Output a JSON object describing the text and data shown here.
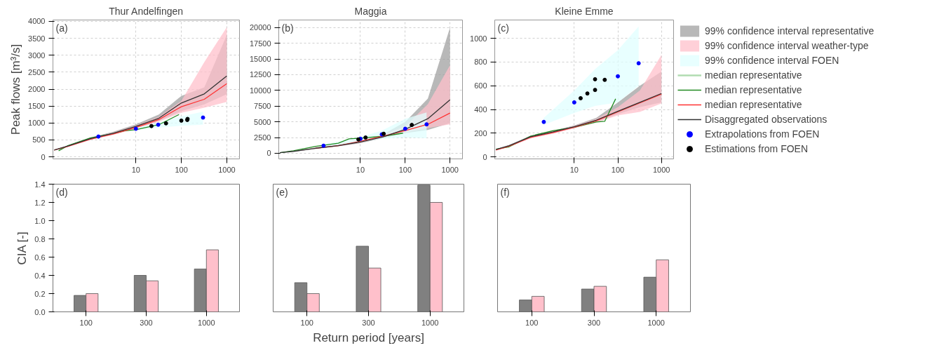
{
  "chart_data": [
    {
      "type": "line",
      "title": "Thur Andelfingen",
      "ylabel": "Peak flows [m³/s]",
      "annotations": [
        "(a)"
      ],
      "log": "x",
      "grid": true,
      "xlim": [
        0.15,
        1900
      ],
      "xticks": [
        10,
        100,
        1000
      ],
      "ylim": [
        -60,
        4040
      ],
      "yticks": [
        0,
        500,
        1000,
        1500,
        2000,
        2500,
        3000,
        3500,
        4000
      ],
      "series": [
        {
          "type": "area",
          "color": "#a0a0a0",
          "x": [
            0.16,
            0.32,
            1,
            3.2,
            10,
            32,
            100,
            320,
            1000
          ],
          "values": [
            null,
            null,
            null,
            null,
            null,
            null,
            null,
            null,
            null
          ],
          "lower": [
            190,
            300,
            510,
            660,
            840,
            1060,
            1350,
            1550,
            1850
          ],
          "upper": [
            210,
            340,
            570,
            740,
            960,
            1250,
            1800,
            2050,
            3600
          ]
        },
        {
          "type": "area",
          "color": "#ffc0cb",
          "x": [
            0.16,
            0.32,
            1,
            3.2,
            10,
            32,
            100,
            320,
            1000
          ],
          "values": [
            null,
            null,
            null,
            null,
            null,
            null,
            null,
            null,
            null
          ],
          "lower": [
            190,
            290,
            500,
            650,
            830,
            1040,
            1300,
            1450,
            1620
          ],
          "upper": [
            210,
            330,
            550,
            720,
            930,
            1180,
            1650,
            2800,
            3830
          ]
        },
        {
          "type": "area",
          "color": "#e0ffff",
          "x": [
            10,
            30,
            100,
            300
          ],
          "values": [
            null,
            null,
            null,
            null
          ],
          "lower": [
            800,
            860,
            920,
            950
          ],
          "upper": [
            850,
            1000,
            1200,
            1330
          ]
        },
        {
          "type": "line",
          "color": "#228b22",
          "x": [
            0.2,
            0.32,
            1,
            3.2,
            5.7,
            10,
            32,
            89
          ],
          "values": [
            180,
            330,
            560,
            690,
            770,
            800,
            950,
            1250
          ]
        },
        {
          "type": "line",
          "color": "#ff3333",
          "x": [
            0.16,
            0.32,
            1,
            3.2,
            10,
            32,
            100,
            320,
            1000
          ],
          "values": [
            200,
            310,
            520,
            680,
            870,
            1100,
            1480,
            1700,
            2160
          ]
        },
        {
          "type": "line",
          "color": "#333333",
          "x": [
            0.16,
            0.32,
            1,
            3.2,
            10,
            32,
            100,
            320,
            1000
          ],
          "values": [
            200,
            320,
            540,
            700,
            900,
            1140,
            1590,
            1860,
            2390
          ]
        },
        {
          "type": "scatter",
          "color": "#0000ff",
          "x": [
            1.5,
            10,
            31,
            300
          ],
          "values": [
            600,
            830,
            950,
            1160
          ]
        },
        {
          "type": "scatter",
          "color": "#000000",
          "x": [
            22,
            46,
            100,
            135,
            137
          ],
          "values": [
            910,
            990,
            1070,
            1090,
            1120
          ]
        }
      ]
    },
    {
      "type": "line",
      "title": "Maggia",
      "annotations": [
        "(b)"
      ],
      "log": "x",
      "grid": true,
      "xlim": [
        0.15,
        1900
      ],
      "xticks": [
        10,
        100,
        1000
      ],
      "ylim": [
        -900,
        21200
      ],
      "yticks": [
        0,
        2500,
        5000,
        7500,
        10000,
        12500,
        15000,
        17500,
        20000
      ],
      "series": [
        {
          "type": "area",
          "color": "#a0a0a0",
          "x": [
            0.16,
            0.32,
            1,
            3.2,
            10,
            32,
            100,
            320,
            1000
          ],
          "values": [
            null,
            null,
            null,
            null,
            null,
            null,
            null,
            null,
            null
          ],
          "lower": [
            90,
            280,
            700,
            1100,
            1600,
            2400,
            3200,
            3700,
            4800
          ],
          "upper": [
            110,
            330,
            900,
            1400,
            2000,
            3000,
            5000,
            8700,
            20000
          ]
        },
        {
          "type": "area",
          "color": "#ffc0cb",
          "x": [
            0.16,
            0.32,
            1,
            3.2,
            10,
            32,
            100,
            320,
            1000
          ],
          "values": [
            null,
            null,
            null,
            null,
            null,
            null,
            null,
            null,
            null
          ],
          "lower": [
            90,
            280,
            700,
            1100,
            1700,
            2500,
            3300,
            4000,
            4600
          ],
          "upper": [
            110,
            330,
            900,
            1400,
            2100,
            3000,
            4300,
            7800,
            14000
          ]
        },
        {
          "type": "area",
          "color": "#e0ffff",
          "x": [
            1.5,
            10,
            30,
            100,
            300
          ],
          "values": [
            null,
            null,
            null,
            null,
            null
          ],
          "lower": [
            1000,
            1800,
            2300,
            2500,
            2400
          ],
          "upper": [
            1400,
            2600,
            3600,
            5500,
            6500
          ]
        },
        {
          "type": "line",
          "color": "#228b22",
          "x": [
            0.16,
            0.32,
            1,
            3.2,
            5.6,
            10,
            32,
            89
          ],
          "values": [
            100,
            400,
            1100,
            1600,
            2300,
            2400,
            2700,
            3200
          ]
        },
        {
          "type": "line",
          "color": "#ff3333",
          "x": [
            1,
            3.2,
            10,
            32,
            100,
            320,
            1000
          ],
          "values": [
            800,
            1200,
            1900,
            2700,
            3600,
            4600,
            6400
          ]
        },
        {
          "type": "line",
          "color": "#333333",
          "x": [
            0.16,
            0.32,
            1,
            3.2,
            10,
            32,
            100,
            320,
            1000
          ],
          "values": [
            100,
            300,
            800,
            1200,
            1800,
            2600,
            3800,
            5500,
            8500
          ]
        },
        {
          "type": "scatter",
          "color": "#0000ff",
          "x": [
            1.5,
            10,
            30,
            100,
            300
          ],
          "values": [
            1200,
            2300,
            3000,
            3900,
            4600
          ]
        },
        {
          "type": "scatter",
          "color": "#000000",
          "x": [
            9,
            13,
            33,
            140
          ],
          "values": [
            2200,
            2500,
            3100,
            4500
          ]
        }
      ]
    },
    {
      "type": "line",
      "title": "Kleine Emme",
      "annotations": [
        "(c)"
      ],
      "log": "x",
      "grid": true,
      "legend": "right",
      "xlim": [
        0.15,
        1900
      ],
      "xticks": [
        10,
        100,
        1000
      ],
      "ylim": [
        -17,
        1155
      ],
      "yticks": [
        0,
        200,
        400,
        600,
        800,
        1000
      ],
      "series": [
        {
          "type": "area",
          "name": "99% confidence interval representative",
          "color": "#a0a0a0",
          "x": [
            0.16,
            0.32,
            1,
            3.2,
            10,
            32,
            100,
            320,
            1000
          ],
          "values": [
            null,
            null,
            null,
            null,
            null,
            null,
            null,
            null,
            null
          ],
          "lower": [
            58,
            90,
            160,
            200,
            245,
            295,
            360,
            420,
            460
          ],
          "upper": [
            66,
            100,
            180,
            220,
            265,
            330,
            460,
            600,
            720
          ]
        },
        {
          "type": "area",
          "name": "99% confidence interval weather-type",
          "color": "#ffc0cb",
          "x": [
            0.16,
            0.32,
            1,
            3.2,
            10,
            32,
            100,
            320,
            1000
          ],
          "values": [
            null,
            null,
            null,
            null,
            null,
            null,
            null,
            null,
            null
          ],
          "lower": [
            55,
            85,
            155,
            195,
            240,
            290,
            350,
            380,
            450
          ],
          "upper": [
            65,
            98,
            175,
            215,
            262,
            320,
            420,
            560,
            860
          ]
        },
        {
          "type": "area",
          "name": "99% confidence interval FOEN",
          "color": "#e0ffff",
          "x": [
            2,
            10,
            30,
            100,
            300
          ],
          "values": [
            null,
            null,
            null,
            null,
            null
          ],
          "lower": [
            270,
            370,
            430,
            460,
            600
          ],
          "upper": [
            330,
            560,
            740,
            900,
            1100
          ]
        },
        {
          "type": "line",
          "name": "median representative",
          "color": "#b0dcb0"
        },
        {
          "type": "line",
          "name": "median representative",
          "color": "#228b22",
          "x": [
            0.16,
            0.32,
            1,
            3.2,
            10,
            32,
            50,
            89
          ],
          "values": [
            65,
            85,
            175,
            220,
            250,
            295,
            300,
            490
          ]
        },
        {
          "type": "line",
          "name": "median representative",
          "color": "#ff3333",
          "x": [
            0.16,
            0.32,
            1,
            3.2,
            10,
            32,
            100,
            320,
            1000
          ],
          "values": [
            58,
            90,
            165,
            205,
            250,
            305,
            380,
            455,
            530
          ]
        },
        {
          "type": "line",
          "name": "Disaggregated observations",
          "color": "#333333",
          "x": [
            0.16,
            0.32,
            1,
            3.2,
            10,
            32,
            100,
            320,
            1000
          ],
          "values": [
            62,
            95,
            170,
            210,
            255,
            310,
            385,
            460,
            535
          ]
        },
        {
          "type": "scatter",
          "name": "Extrapolations from FOEN",
          "color": "#0000ff",
          "x": [
            2,
            10,
            100,
            300
          ],
          "values": [
            295,
            460,
            680,
            790
          ]
        },
        {
          "type": "scatter",
          "name": "Estimations from FOEN",
          "color": "#000000",
          "x": [
            14,
            20,
            30,
            30,
            50
          ],
          "values": [
            495,
            535,
            655,
            565,
            650
          ]
        }
      ]
    },
    {
      "type": "bar",
      "ylabel": "CIA [-]",
      "annotations": [
        "(d)"
      ],
      "categories": [
        "100",
        "300",
        "1000"
      ],
      "ylim": [
        0,
        1.4
      ],
      "yticks": [
        {
          "value": 0,
          "label": "0.0"
        },
        {
          "value": 0.2,
          "label": "0.2"
        },
        {
          "value": 0.4,
          "label": "0.4"
        },
        {
          "value": 0.6,
          "label": "0.6"
        },
        {
          "value": 0.8,
          "label": "0.8"
        },
        {
          "value": 1.0,
          "label": "1.0"
        },
        {
          "value": 1.2,
          "label": "1.2"
        },
        {
          "value": 1.4,
          "label": "1.4"
        }
      ],
      "series": [
        {
          "color": "#808080",
          "values": [
            0.18,
            0.4,
            0.47
          ]
        },
        {
          "color": "#ffc0cb",
          "values": [
            0.2,
            0.34,
            0.68
          ]
        }
      ]
    },
    {
      "type": "bar",
      "xlabel": "Return period [years]",
      "annotations": [
        "(e)"
      ],
      "categories": [
        "100",
        "300",
        "1000"
      ],
      "ylim": [
        0,
        1.4
      ],
      "yticks": [
        0,
        0.2,
        0.4,
        0.6,
        0.8,
        1.0,
        1.2,
        1.4
      ],
      "tick_labels": "x",
      "series": [
        {
          "color": "#808080",
          "values": [
            0.32,
            0.72,
            1.39
          ]
        },
        {
          "color": "#ffc0cb",
          "values": [
            0.2,
            0.48,
            1.2
          ]
        }
      ]
    },
    {
      "type": "bar",
      "annotations": [
        "(f)"
      ],
      "categories": [
        "100",
        "300",
        "1000"
      ],
      "ylim": [
        0,
        1.4
      ],
      "yticks": [
        0,
        0.2,
        0.4,
        0.6,
        0.8,
        1.0,
        1.2,
        1.4
      ],
      "tick_labels": "x",
      "series": [
        {
          "color": "#808080",
          "values": [
            0.13,
            0.25,
            0.38
          ]
        },
        {
          "color": "#ffc0cb",
          "values": [
            0.17,
            0.28,
            0.57
          ]
        }
      ]
    }
  ]
}
